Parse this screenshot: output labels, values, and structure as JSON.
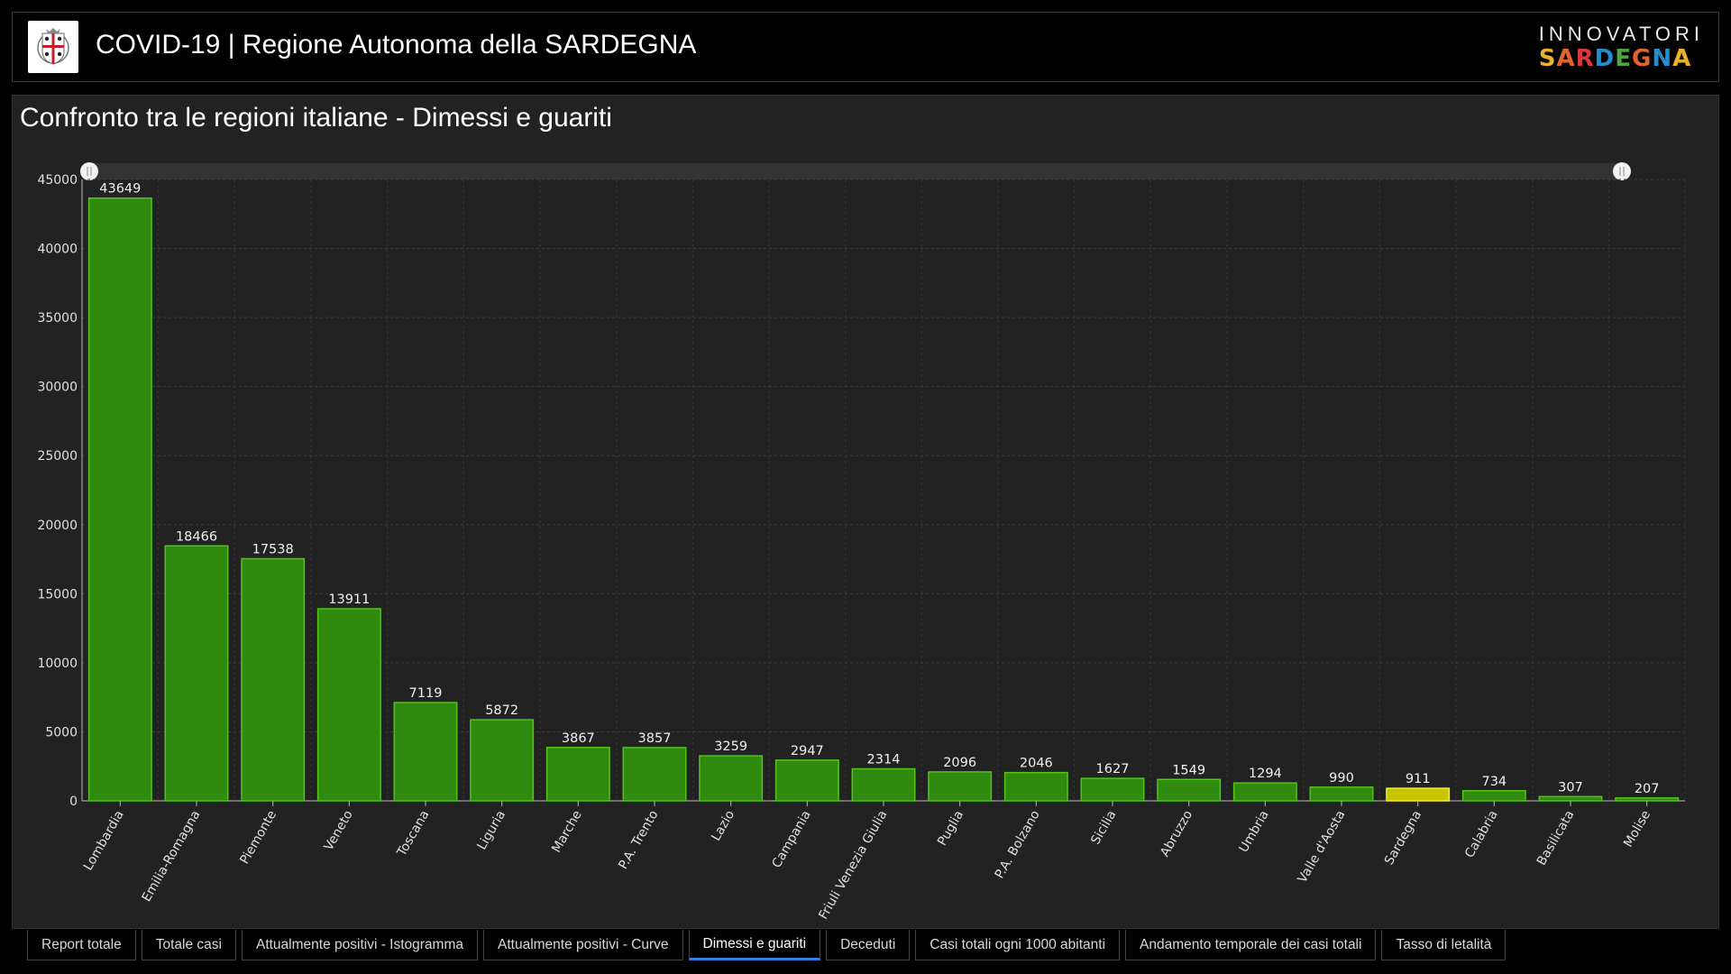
{
  "header": {
    "title": "COVID-19 | Regione Autonoma della SARDEGNA",
    "brand_top": "INNOVATORI",
    "brand_bottom": "SARDEGNA",
    "brand_colors": [
      "#e8b32a",
      "#e2662b",
      "#d8393b",
      "#1f8fd0",
      "#4aa83d",
      "#e2662b",
      "#1f8fd0",
      "#e8b32a"
    ]
  },
  "panel": {
    "title": "Confronto tra le regioni italiane - Dimessi e guariti"
  },
  "tabs": [
    {
      "label": "Report totale",
      "active": false
    },
    {
      "label": "Totale casi",
      "active": false
    },
    {
      "label": "Attualmente positivi - Istogramma",
      "active": false
    },
    {
      "label": "Attualmente positivi - Curve",
      "active": false
    },
    {
      "label": "Dimessi e guariti",
      "active": true
    },
    {
      "label": "Deceduti",
      "active": false
    },
    {
      "label": "Casi totali ogni 1000 abitanti",
      "active": false
    },
    {
      "label": "Andamento temporale dei casi totali",
      "active": false
    },
    {
      "label": "Tasso di letalità",
      "active": false
    }
  ],
  "chart_data": {
    "type": "bar",
    "categories": [
      "Lombardia",
      "Emilia-Romagna",
      "Piemonte",
      "Veneto",
      "Toscana",
      "Liguria",
      "Marche",
      "P.A. Trento",
      "Lazio",
      "Campania",
      "Friuli Venezia Giulia",
      "Puglia",
      "P.A. Bolzano",
      "Sicilia",
      "Abruzzo",
      "Umbria",
      "Valle d'Aosta",
      "Sardegna",
      "Calabria",
      "Basilicata",
      "Molise"
    ],
    "values": [
      43649,
      18466,
      17538,
      13911,
      7119,
      5872,
      3867,
      3857,
      3259,
      2947,
      2314,
      2096,
      2046,
      1627,
      1549,
      1294,
      990,
      911,
      734,
      307,
      207
    ],
    "yticks": [
      0,
      5000,
      10000,
      15000,
      20000,
      25000,
      30000,
      35000,
      40000,
      45000
    ],
    "ylim": [
      0,
      45000
    ],
    "highlight": "Sardegna",
    "bar_color": "#2f8a0f",
    "bar_border": "#52c41a",
    "highlight_color": "#c9c400",
    "highlight_border": "#f2ee22",
    "grid": true
  }
}
